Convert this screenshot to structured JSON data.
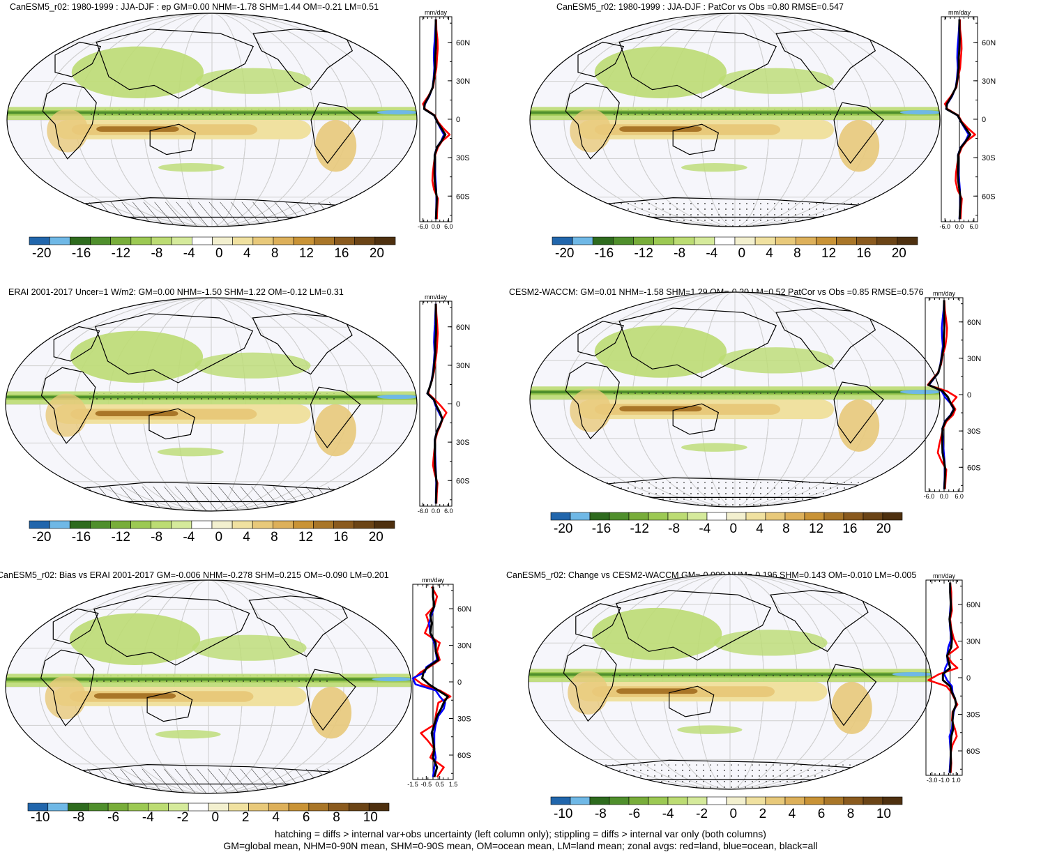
{
  "colors": {
    "blue_line": "#0000ff",
    "red_line": "#ff0000",
    "black_line": "#000000",
    "palette_full": [
      "#2166ac",
      "#6fb8e6",
      "#2e6b1e",
      "#4f8f2c",
      "#78ad3a",
      "#9cc953",
      "#bcdc73",
      "#d5ea9b",
      "#ffffff",
      "#f3f0cf",
      "#f0e1a0",
      "#e8c97a",
      "#ddb05a",
      "#c99336",
      "#a97628",
      "#8a5a1e",
      "#6b4416",
      "#4e300f"
    ],
    "palette_diff": [
      "#2166ac",
      "#6fb8e6",
      "#2e6b1e",
      "#4f8f2c",
      "#78ad3a",
      "#9cc953",
      "#bcdc73",
      "#d5ea9b",
      "#ffffff",
      "#f3f0cf",
      "#f0e1a0",
      "#e8c97a",
      "#ddb05a",
      "#c99336",
      "#a97628",
      "#8a5a1e",
      "#6b4416",
      "#4e300f"
    ]
  },
  "panels": [
    {
      "title": "CanESM5_r02: 1980-1999 : JJA-DJF : ep GM=0.00 NHM=-1.78 SHM=1.44 OM=-0.21 LM=0.51",
      "cbar_labels": [
        "-20",
        "-16",
        "-12",
        "-8",
        "-4",
        "0",
        "4",
        "8",
        "12",
        "16",
        "20"
      ],
      "zonal_unit": "mm/day",
      "zonal_xticks": [
        "-6.0",
        "0.0",
        "6.0"
      ],
      "lat_ticks": [
        "60N",
        "30N",
        "0",
        "30S",
        "60S"
      ]
    },
    {
      "title": "CanESM5_r02: 1980-1999 : JJA-DJF : PatCor vs Obs =0.80 RMSE=0.547",
      "cbar_labels": [
        "-20",
        "-16",
        "-12",
        "-8",
        "-4",
        "0",
        "4",
        "8",
        "12",
        "16",
        "20"
      ],
      "zonal_unit": "mm/day",
      "zonal_xticks": [
        "-6.0",
        "0.0",
        "6.0"
      ],
      "lat_ticks": [
        "60N",
        "30N",
        "0",
        "30S",
        "60S"
      ]
    },
    {
      "title": "ERAI 2001-2017 Uncer=1 W/m2: GM=0.00 NHM=-1.50 SHM=1.22 OM=-0.12 LM=0.31",
      "cbar_labels": [
        "-20",
        "-16",
        "-12",
        "-8",
        "-4",
        "0",
        "4",
        "8",
        "12",
        "16",
        "20"
      ],
      "zonal_unit": "mm/day",
      "zonal_xticks": [
        "-6.0",
        "0.0",
        "6.0"
      ],
      "lat_ticks": [
        "60N",
        "30N",
        "0",
        "30S",
        "60S"
      ]
    },
    {
      "title": "CESM2-WACCM: GM=0.01 NHM=-1.58 SHM=1.29 OM=-0.20 LM=0.52 PatCor vs Obs =0.85 RMSE=0.576",
      "cbar_labels": [
        "-20",
        "-16",
        "-12",
        "-8",
        "-4",
        "0",
        "4",
        "8",
        "12",
        "16",
        "20"
      ],
      "zonal_unit": "mm/day",
      "zonal_xticks": [
        "-6.0",
        "0.0",
        "6.0"
      ],
      "lat_ticks": [
        "60N",
        "30N",
        "0",
        "30S",
        "60S"
      ]
    },
    {
      "title": "CanESM5_r02: Bias vs ERAI 2001-2017 GM=-0.006 NHM=-0.278 SHM=0.215 OM=-0.090 LM=0.201",
      "cbar_labels": [
        "-10",
        "-8",
        "-6",
        "-4",
        "-2",
        "0",
        "2",
        "4",
        "6",
        "8",
        "10"
      ],
      "zonal_unit": "mm/day",
      "zonal_xticks": [
        "-1.5",
        "-0.5",
        "0.5",
        "1.5"
      ],
      "lat_ticks": [
        "60N",
        "30N",
        "0",
        "30S",
        "60S"
      ]
    },
    {
      "title": "CanESM5_r02: Change vs CESM2-WACCM GM=-0.009 NHM=-0.196 SHM=0.143 OM=-0.010 LM=-0.005",
      "cbar_labels": [
        "-10",
        "-8",
        "-6",
        "-4",
        "-2",
        "0",
        "2",
        "4",
        "6",
        "8",
        "10"
      ],
      "zonal_unit": "mm/day",
      "zonal_xticks": [
        "-3.0",
        "-1.0",
        "1.0"
      ],
      "lat_ticks": [
        "60N",
        "30N",
        "0",
        "30S",
        "60S"
      ]
    }
  ],
  "footer": {
    "line1": "hatching = diffs > internal var+obs uncertainty (left column only); stippling = diffs > internal var only (both columns)",
    "line2": "GM=global mean, NHM=0-90N mean, SHM=0-90S mean, OM=ocean mean, LM=land mean; zonal avgs: red=land, blue=ocean, black=all"
  },
  "chart_data": [
    {
      "type": "line",
      "title": "CanESM5_r02: 1980-1999 : JJA-DJF : ep GM=0.00 NHM=-1.78 SHM=1.44 OM=-0.21 LM=0.51",
      "xlabel": "mm/day",
      "ylabel": "",
      "xlim": [
        -7.5,
        7.5
      ],
      "ylim": [
        -80,
        80
      ],
      "y": [
        -78,
        -70,
        -62,
        -55,
        -48,
        -42,
        -35,
        -28,
        -22,
        -17,
        -12,
        -7,
        -2,
        3,
        8,
        12,
        18,
        25,
        32,
        40,
        48,
        55,
        62,
        70,
        78
      ],
      "series": [
        {
          "name": "land",
          "x": [
            0.5,
            0.7,
            1.0,
            -0.8,
            -1.6,
            -1.4,
            -0.9,
            -0.3,
            1.0,
            3.0,
            6.5,
            3.5,
            1.0,
            -0.5,
            -5.0,
            -6.0,
            -3.5,
            -1.2,
            -0.6,
            0.3,
            0.6,
            0.9,
            0.8,
            0.3,
            0.2
          ]
        },
        {
          "name": "ocean",
          "x": [
            0.0,
            0.2,
            0.3,
            0.2,
            -0.1,
            -0.3,
            -0.5,
            -0.6,
            0.5,
            2.5,
            3.8,
            2.2,
            0.6,
            -0.8,
            -5.5,
            -5.0,
            -3.0,
            -1.5,
            -1.0,
            -0.7,
            -0.9,
            -0.8,
            -0.5,
            -0.2,
            0.0
          ]
        },
        {
          "name": "all",
          "x": [
            0.1,
            0.3,
            0.5,
            0.0,
            -0.5,
            -0.6,
            -0.6,
            -0.5,
            0.6,
            2.7,
            4.5,
            2.6,
            0.7,
            -0.7,
            -5.4,
            -5.2,
            -3.2,
            -1.4,
            -0.8,
            -0.3,
            -0.3,
            0.0,
            0.1,
            0.0,
            0.0
          ]
        }
      ]
    },
    {
      "type": "line",
      "title": "CanESM5_r02: 1980-1999 : JJA-DJF : PatCor vs Obs =0.80 RMSE=0.547",
      "xlabel": "mm/day",
      "ylabel": "",
      "xlim": [
        -7.5,
        7.5
      ],
      "ylim": [
        -80,
        80
      ],
      "y": [
        -78,
        -70,
        -62,
        -55,
        -48,
        -42,
        -35,
        -28,
        -22,
        -17,
        -12,
        -7,
        -2,
        3,
        8,
        12,
        18,
        25,
        32,
        40,
        48,
        55,
        62,
        70,
        78
      ],
      "series": [
        {
          "name": "land",
          "x": [
            0.5,
            0.7,
            1.0,
            -0.8,
            -1.6,
            -1.4,
            -0.9,
            -0.3,
            1.0,
            3.0,
            6.5,
            3.5,
            1.0,
            -0.5,
            -5.0,
            -6.0,
            -3.5,
            -1.2,
            -0.6,
            0.3,
            0.6,
            0.9,
            0.8,
            0.3,
            0.2
          ]
        },
        {
          "name": "ocean",
          "x": [
            0.0,
            0.2,
            0.3,
            0.2,
            -0.1,
            -0.3,
            -0.5,
            -0.6,
            0.5,
            2.5,
            3.8,
            2.2,
            0.6,
            -0.8,
            -5.5,
            -5.0,
            -3.0,
            -1.5,
            -1.0,
            -0.7,
            -0.9,
            -0.8,
            -0.5,
            -0.2,
            0.0
          ]
        },
        {
          "name": "all",
          "x": [
            0.1,
            0.3,
            0.5,
            0.0,
            -0.5,
            -0.6,
            -0.6,
            -0.5,
            0.6,
            2.7,
            4.5,
            2.6,
            0.7,
            -0.7,
            -5.4,
            -5.2,
            -3.2,
            -1.4,
            -0.8,
            -0.3,
            -0.3,
            0.0,
            0.1,
            0.0,
            0.0
          ]
        }
      ]
    },
    {
      "type": "line",
      "title": "ERAI 2001-2017 Uncer=1 W/m2: GM=0.00 NHM=-1.50 SHM=1.22 OM=-0.12 LM=0.31",
      "xlabel": "mm/day",
      "ylabel": "",
      "xlim": [
        -7.5,
        7.5
      ],
      "ylim": [
        -80,
        80
      ],
      "y": [
        -78,
        -70,
        -62,
        -55,
        -48,
        -42,
        -35,
        -28,
        -22,
        -17,
        -12,
        -7,
        -2,
        3,
        8,
        12,
        18,
        25,
        32,
        40,
        48,
        55,
        62,
        70,
        78
      ],
      "series": [
        {
          "name": "land",
          "x": [
            0.3,
            0.5,
            0.8,
            -0.5,
            -1.3,
            -1.0,
            -0.6,
            -0.2,
            0.8,
            2.2,
            3.2,
            5.0,
            2.5,
            -0.3,
            -3.5,
            -3.0,
            -1.8,
            -0.8,
            -0.3,
            0.4,
            0.7,
            0.9,
            0.7,
            0.3,
            0.1
          ]
        },
        {
          "name": "ocean",
          "x": [
            0.0,
            0.1,
            0.2,
            0.1,
            -0.1,
            -0.2,
            -0.4,
            -0.5,
            0.4,
            1.8,
            3.0,
            1.5,
            0.0,
            -1.0,
            -4.0,
            -3.0,
            -2.0,
            -1.3,
            -0.9,
            -0.6,
            -0.8,
            -0.7,
            -0.4,
            -0.2,
            0.0
          ]
        },
        {
          "name": "all",
          "x": [
            0.1,
            0.2,
            0.4,
            0.0,
            -0.4,
            -0.5,
            -0.5,
            -0.4,
            0.5,
            1.9,
            3.1,
            2.0,
            0.4,
            -0.8,
            -3.9,
            -3.0,
            -1.9,
            -1.1,
            -0.7,
            -0.2,
            -0.2,
            0.1,
            0.1,
            0.0,
            0.0
          ]
        }
      ]
    },
    {
      "type": "line",
      "title": "CESM2-WACCM: GM=0.01 NHM=-1.58 SHM=1.29 OM=-0.20 LM=0.52 PatCor vs Obs =0.85 RMSE=0.576",
      "xlabel": "mm/day",
      "ylabel": "",
      "xlim": [
        -7.5,
        7.5
      ],
      "ylim": [
        -80,
        80
      ],
      "y": [
        -78,
        -70,
        -62,
        -55,
        -48,
        -42,
        -35,
        -28,
        -22,
        -17,
        -12,
        -7,
        -2,
        3,
        8,
        12,
        18,
        25,
        32,
        40,
        48,
        55,
        62,
        70,
        78
      ],
      "series": [
        {
          "name": "land",
          "x": [
            0.4,
            0.6,
            0.9,
            -1.0,
            -2.5,
            -2.0,
            -1.2,
            -0.4,
            1.0,
            3.5,
            4.5,
            3.0,
            5.0,
            1.0,
            -6.5,
            -5.0,
            -2.5,
            -1.2,
            -0.6,
            0.5,
            1.0,
            1.2,
            0.8,
            0.3,
            0.1
          ]
        },
        {
          "name": "ocean",
          "x": [
            0.0,
            0.2,
            0.3,
            0.2,
            -0.1,
            -0.3,
            -0.5,
            -0.7,
            0.3,
            2.5,
            3.8,
            2.5,
            0.3,
            -1.0,
            -6.0,
            -4.5,
            -2.3,
            -1.5,
            -1.0,
            -0.5,
            -0.8,
            -0.9,
            -0.6,
            -0.2,
            0.0
          ]
        },
        {
          "name": "all",
          "x": [
            0.1,
            0.3,
            0.5,
            0.0,
            -0.6,
            -0.7,
            -0.7,
            -0.6,
            0.5,
            2.7,
            4.0,
            2.6,
            1.5,
            -0.6,
            -6.2,
            -4.7,
            -2.3,
            -1.4,
            -0.8,
            -0.1,
            -0.1,
            0.1,
            0.1,
            0.0,
            0.0
          ]
        }
      ]
    },
    {
      "type": "line",
      "title": "CanESM5_r02: Bias vs ERAI 2001-2017 GM=-0.006 NHM=-0.278 SHM=0.215 OM=-0.090 LM=0.201",
      "xlabel": "mm/day",
      "ylabel": "",
      "xlim": [
        -1.5,
        1.5
      ],
      "ylim": [
        -80,
        80
      ],
      "y": [
        -78,
        -70,
        -62,
        -55,
        -48,
        -42,
        -35,
        -28,
        -22,
        -17,
        -12,
        -7,
        -2,
        3,
        8,
        12,
        18,
        25,
        32,
        40,
        48,
        55,
        62,
        70,
        78
      ],
      "series": [
        {
          "name": "land",
          "x": [
            0.3,
            0.8,
            -0.2,
            0.1,
            -0.4,
            -0.9,
            0.1,
            0.2,
            0.3,
            0.4,
            1.3,
            0.5,
            -0.8,
            -1.4,
            -0.9,
            -0.3,
            0.5,
            0.3,
            0.5,
            -0.6,
            -0.3,
            -0.5,
            0.1,
            0.3,
            -0.1
          ]
        },
        {
          "name": "ocean",
          "x": [
            0.0,
            0.1,
            0.2,
            0.1,
            0.1,
            0.1,
            0.2,
            0.4,
            0.8,
            0.9,
            0.5,
            0.2,
            -1.3,
            -1.5,
            -0.6,
            -0.5,
            0.3,
            0.2,
            0.1,
            -0.2,
            -0.3,
            -0.1,
            0.1,
            0.0,
            0.0
          ]
        },
        {
          "name": "all",
          "x": [
            0.1,
            0.3,
            0.0,
            0.1,
            0.0,
            -0.1,
            0.1,
            0.3,
            0.6,
            0.8,
            1.1,
            0.4,
            -0.3,
            -0.8,
            -0.7,
            -0.4,
            0.4,
            0.2,
            0.2,
            -0.2,
            -0.1,
            -0.2,
            0.1,
            0.0,
            0.0
          ]
        }
      ]
    },
    {
      "type": "line",
      "title": "CanESM5_r02: Change vs CESM2-WACCM GM=-0.009 NHM=-0.196 SHM=0.143 OM=-0.010 LM=-0.005",
      "xlabel": "mm/day",
      "ylabel": "",
      "xlim": [
        -4.0,
        2.0
      ],
      "ylim": [
        -80,
        80
      ],
      "y": [
        -78,
        -70,
        -62,
        -55,
        -48,
        -42,
        -35,
        -28,
        -22,
        -17,
        -12,
        -7,
        -2,
        3,
        8,
        12,
        18,
        25,
        32,
        40,
        48,
        55,
        62,
        70,
        78
      ],
      "series": [
        {
          "name": "land",
          "x": [
            0.1,
            0.2,
            0.1,
            0.4,
            1.1,
            0.8,
            0.3,
            0.4,
            1.2,
            0.7,
            0.2,
            -0.6,
            -3.6,
            -1.8,
            1.2,
            0.3,
            -0.5,
            1.3,
            0.6,
            0.2,
            0.0,
            0.3,
            0.2,
            0.2,
            0.0
          ]
        },
        {
          "name": "ocean",
          "x": [
            -0.1,
            0.0,
            0.1,
            0.0,
            -0.1,
            0.3,
            0.4,
            0.6,
            1.0,
            0.8,
            0.4,
            0.3,
            -0.5,
            -1.0,
            -0.8,
            -0.4,
            -0.5,
            -0.3,
            0.2,
            0.0,
            -0.1,
            0.0,
            0.1,
            0.0,
            0.0
          ]
        },
        {
          "name": "all",
          "x": [
            0.0,
            0.1,
            0.1,
            0.1,
            0.2,
            0.5,
            0.4,
            0.5,
            1.0,
            0.8,
            0.3,
            0.0,
            -1.2,
            -1.2,
            0.0,
            -0.2,
            -0.5,
            0.2,
            0.3,
            0.1,
            -0.1,
            0.1,
            0.1,
            0.0,
            0.0
          ]
        }
      ]
    }
  ]
}
